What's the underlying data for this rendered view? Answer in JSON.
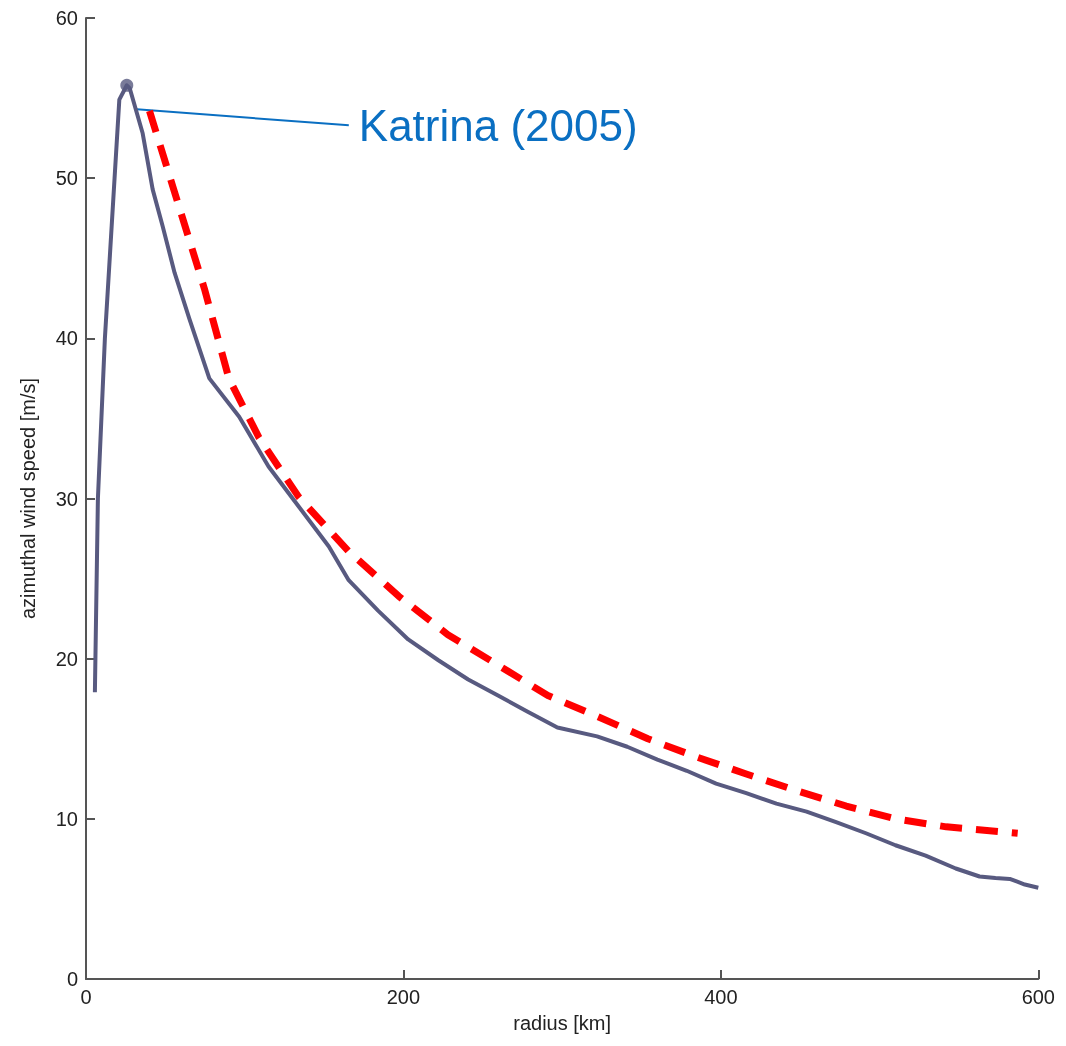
{
  "chart_data": {
    "type": "line",
    "xlabel": "radius [km]",
    "ylabel": "azimuthal wind speed [m/s]",
    "xlim": [
      0,
      600
    ],
    "xticks": [
      0,
      200,
      400,
      600
    ],
    "ylim": [
      0,
      60
    ],
    "yticks": [
      0,
      10,
      20,
      30,
      40,
      50,
      60
    ],
    "grid": false,
    "marker": "none",
    "annotations": [
      {
        "text": "Katrina (2005)",
        "x": 32,
        "y": 54.3
      }
    ],
    "series": [
      {
        "color": "#585a80",
        "line_style": "solid",
        "x": [
          5.6,
          7.5,
          11.9,
          18,
          21,
          25.7,
          27.6,
          35.7,
          42,
          48.3,
          55.8,
          65.2,
          77.7,
          96.5,
          115,
          134,
          153,
          165.5,
          184,
          203,
          222,
          240.8,
          259.6,
          278,
          297,
          322,
          341,
          360,
          378.5,
          397,
          416,
          435,
          454,
          472.6,
          491.4,
          510,
          529,
          548,
          563,
          573,
          582,
          591.5,
          600
        ],
        "values": [
          17.9,
          30,
          40,
          50,
          54.9,
          55.8,
          55.6,
          52.8,
          49.3,
          47,
          44.1,
          41.2,
          37.5,
          35.1,
          32,
          29.5,
          27,
          24.9,
          23,
          21.2,
          19.9,
          18.7,
          17.7,
          16.7,
          15.7,
          15.15,
          14.5,
          13.7,
          13,
          12.2,
          11.6,
          10.95,
          10.45,
          9.8,
          9.1,
          8.35,
          7.7,
          6.9,
          6.4,
          6.3,
          6.25,
          5.9,
          5.7
        ]
      },
      {
        "color": "#ff0000",
        "line_style": "dashed",
        "x": [
          40,
          59,
          74.6,
          90,
          109,
          134,
          165.5,
          197,
          228,
          259.6,
          291,
          322,
          354,
          385,
          416,
          448,
          479,
          510,
          542,
          587
        ],
        "values": [
          54.2,
          48.1,
          43.1,
          37.5,
          33.8,
          30.1,
          26.7,
          23.9,
          21.5,
          19.6,
          17.7,
          16.4,
          15,
          13.85,
          12.8,
          11.75,
          10.8,
          10,
          9.5,
          9.1
        ]
      },
      {
        "type": "scatter",
        "color": "#585a80",
        "marker": "circle",
        "x": [
          25.7
        ],
        "values": [
          55.8
        ]
      }
    ]
  }
}
